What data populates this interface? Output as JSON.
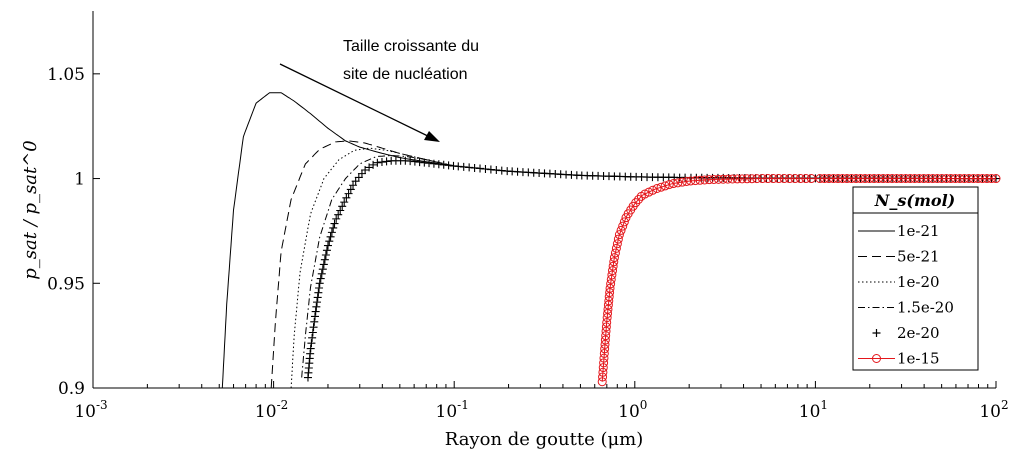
{
  "chart_data": {
    "type": "line",
    "title": "",
    "xlabel": "Rayon de goutte (μm)",
    "ylabel": "p_sat / p_sat^0",
    "xscale": "log",
    "xlim": [
      0.001,
      100
    ],
    "ylim": [
      0.9,
      1.08
    ],
    "x_ticks": [
      {
        "base": "10",
        "exp": "-3"
      },
      {
        "base": "10",
        "exp": "-2"
      },
      {
        "base": "10",
        "exp": "-1"
      },
      {
        "base": "10",
        "exp": "0"
      },
      {
        "base": "10",
        "exp": "1"
      },
      {
        "base": "10",
        "exp": "2"
      }
    ],
    "y_ticks": [
      "0.9",
      "0.95",
      "1",
      "1.05"
    ],
    "grid": false,
    "legend_placement": "right",
    "legend_title": "N_s(mol)",
    "annotation": {
      "line1": "Taille croissante du",
      "line2": "site de nucléation"
    },
    "series": [
      {
        "name": "1e-21",
        "style": "solid",
        "color": "#000000",
        "points": [
          [
            0.0052,
            0.9
          ],
          [
            0.0055,
            0.94
          ],
          [
            0.006,
            0.985
          ],
          [
            0.0068,
            1.02
          ],
          [
            0.008,
            1.036
          ],
          [
            0.0095,
            1.041
          ],
          [
            0.011,
            1.041
          ],
          [
            0.013,
            1.037
          ],
          [
            0.016,
            1.031
          ],
          [
            0.02,
            1.024
          ],
          [
            0.025,
            1.018
          ],
          [
            0.03,
            1.015
          ],
          [
            0.04,
            1.012
          ],
          [
            0.05,
            1.01
          ],
          [
            0.07,
            1.008
          ],
          [
            0.1,
            1.006
          ],
          [
            0.15,
            1.0045
          ],
          [
            0.2,
            1.0035
          ],
          [
            0.3,
            1.0025
          ],
          [
            0.5,
            1.0015
          ],
          [
            1,
            1.0008
          ],
          [
            2,
            1.0004
          ],
          [
            5,
            1.0002
          ],
          [
            10,
            1.0001
          ],
          [
            100,
            1.0
          ]
        ]
      },
      {
        "name": "5e-21",
        "style": "dashed",
        "color": "#000000",
        "points": [
          [
            0.0097,
            0.9
          ],
          [
            0.0102,
            0.93
          ],
          [
            0.011,
            0.965
          ],
          [
            0.0125,
            0.99
          ],
          [
            0.015,
            1.007
          ],
          [
            0.018,
            1.014
          ],
          [
            0.022,
            1.0175
          ],
          [
            0.026,
            1.018
          ],
          [
            0.032,
            1.017
          ],
          [
            0.04,
            1.0145
          ],
          [
            0.05,
            1.012
          ],
          [
            0.07,
            1.009
          ],
          [
            0.1,
            1.006
          ],
          [
            0.2,
            1.0035
          ],
          [
            0.5,
            1.0015
          ],
          [
            1,
            1.0008
          ],
          [
            5,
            1.0002
          ],
          [
            100,
            1.0
          ]
        ]
      },
      {
        "name": "1e-20",
        "style": "dotted",
        "color": "#000000",
        "points": [
          [
            0.0125,
            0.9
          ],
          [
            0.013,
            0.925
          ],
          [
            0.014,
            0.955
          ],
          [
            0.016,
            0.983
          ],
          [
            0.019,
            1.0
          ],
          [
            0.023,
            1.009
          ],
          [
            0.028,
            1.0135
          ],
          [
            0.034,
            1.0145
          ],
          [
            0.042,
            1.0135
          ],
          [
            0.05,
            1.012
          ],
          [
            0.07,
            1.009
          ],
          [
            0.1,
            1.006
          ],
          [
            0.2,
            1.0035
          ],
          [
            0.5,
            1.0015
          ],
          [
            1,
            1.0008
          ],
          [
            5,
            1.0002
          ],
          [
            100,
            1.0
          ]
        ]
      },
      {
        "name": "1.5e-20",
        "style": "dashdot",
        "color": "#000000",
        "points": [
          [
            0.0143,
            0.905
          ],
          [
            0.015,
            0.925
          ],
          [
            0.016,
            0.948
          ],
          [
            0.018,
            0.972
          ],
          [
            0.021,
            0.99
          ],
          [
            0.025,
            1.0
          ],
          [
            0.03,
            1.007
          ],
          [
            0.037,
            1.0105
          ],
          [
            0.045,
            1.011
          ],
          [
            0.055,
            1.0105
          ],
          [
            0.07,
            1.009
          ],
          [
            0.1,
            1.006
          ],
          [
            0.2,
            1.0035
          ],
          [
            0.5,
            1.0015
          ],
          [
            1,
            1.0008
          ],
          [
            5,
            1.0002
          ],
          [
            100,
            1.0
          ]
        ]
      },
      {
        "name": "2e-20",
        "style": "plus",
        "color": "#000000",
        "points": [
          [
            0.0155,
            0.905
          ],
          [
            0.016,
            0.918
          ],
          [
            0.017,
            0.935
          ],
          [
            0.018,
            0.95
          ],
          [
            0.02,
            0.968
          ],
          [
            0.022,
            0.98
          ],
          [
            0.025,
            0.99
          ],
          [
            0.028,
            0.998
          ],
          [
            0.032,
            1.004
          ],
          [
            0.037,
            1.0075
          ],
          [
            0.045,
            1.0085
          ],
          [
            0.055,
            1.0085
          ],
          [
            0.07,
            1.0075
          ],
          [
            0.1,
            1.006
          ],
          [
            0.2,
            1.0035
          ],
          [
            0.5,
            1.0015
          ],
          [
            1,
            1.0008
          ],
          [
            2,
            1.0004
          ],
          [
            5,
            1.0002
          ],
          [
            10,
            1.0001
          ],
          [
            100,
            1.0
          ]
        ]
      },
      {
        "name": "1e-15",
        "style": "circle",
        "color": "#e4161b",
        "points": [
          [
            0.66,
            0.903
          ],
          [
            0.68,
            0.918
          ],
          [
            0.7,
            0.932
          ],
          [
            0.73,
            0.948
          ],
          [
            0.77,
            0.962
          ],
          [
            0.82,
            0.973
          ],
          [
            0.9,
            0.982
          ],
          [
            1.0,
            0.988
          ],
          [
            1.1,
            0.992
          ],
          [
            1.3,
            0.995
          ],
          [
            1.6,
            0.9975
          ],
          [
            2.0,
            0.9988
          ],
          [
            2.6,
            0.9995
          ],
          [
            3.5,
            0.9998
          ],
          [
            5,
            1.0
          ],
          [
            10,
            1.0
          ],
          [
            100,
            1.0
          ]
        ]
      }
    ]
  }
}
